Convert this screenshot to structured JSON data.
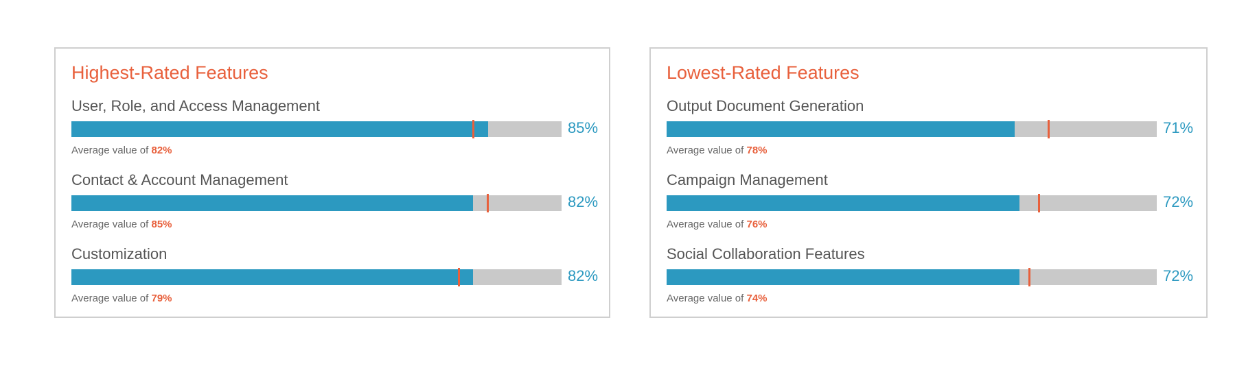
{
  "colors": {
    "accent": "#e8603c",
    "bar": "#2c99c0",
    "track": "#c9c9c9"
  },
  "chart_data": [
    {
      "type": "bar",
      "orientation": "horizontal",
      "title": "Highest-Rated Features",
      "categories": [
        "User, Role, and Access Management",
        "Contact & Account Management",
        "Customization"
      ],
      "values": [
        85,
        82,
        82
      ],
      "value_labels": [
        "85%",
        "82%",
        "82%"
      ],
      "average_values": [
        82,
        85,
        79
      ],
      "average_labels": [
        "82%",
        "85%",
        "79%"
      ],
      "average_prefix": "Average value of ",
      "xlim": [
        0,
        100
      ]
    },
    {
      "type": "bar",
      "orientation": "horizontal",
      "title": "Lowest-Rated Features",
      "categories": [
        "Output Document Generation",
        "Campaign Management",
        "Social Collaboration Features"
      ],
      "values": [
        71,
        72,
        72
      ],
      "value_labels": [
        "71%",
        "72%",
        "72%"
      ],
      "average_values": [
        78,
        76,
        74
      ],
      "average_labels": [
        "78%",
        "76%",
        "74%"
      ],
      "average_prefix": "Average value of ",
      "xlim": [
        0,
        100
      ]
    }
  ]
}
